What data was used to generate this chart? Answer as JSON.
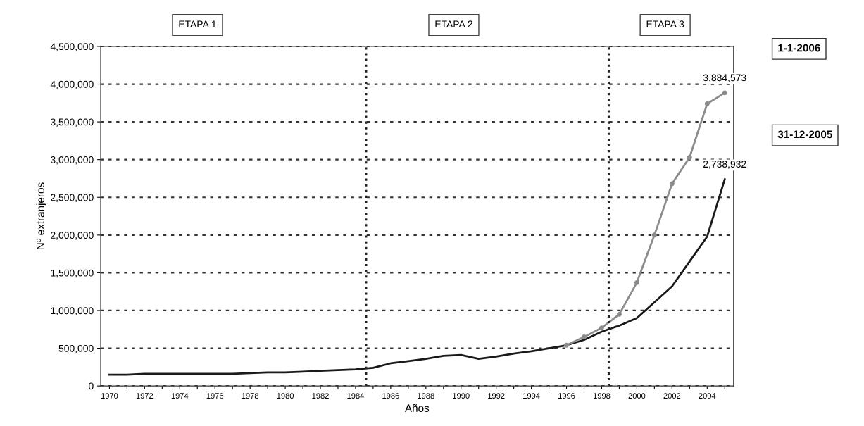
{
  "chart_data": {
    "type": "line",
    "xlabel": "Años",
    "ylabel": "Nº extranjeros",
    "x": [
      1970,
      1971,
      1972,
      1973,
      1974,
      1975,
      1976,
      1977,
      1978,
      1979,
      1980,
      1981,
      1982,
      1983,
      1984,
      1985,
      1986,
      1987,
      1988,
      1989,
      1990,
      1991,
      1992,
      1993,
      1994,
      1995,
      1996,
      1997,
      1998,
      1999,
      2000,
      2001,
      2002,
      2003,
      2004,
      2005
    ],
    "series": [
      {
        "name": "31-12-2005",
        "color": "#1a1a1a",
        "marker": "none",
        "values": [
          150000,
          150000,
          160000,
          160000,
          160000,
          160000,
          160000,
          160000,
          170000,
          180000,
          180000,
          190000,
          200000,
          210000,
          220000,
          240000,
          300000,
          330000,
          360000,
          400000,
          410000,
          360000,
          390000,
          430000,
          460000,
          500000,
          540000,
          610000,
          720000,
          800000,
          900000,
          1110000,
          1320000,
          1650000,
          1980000,
          2738932
        ],
        "value_labels": [
          null,
          null,
          null,
          null,
          null,
          null,
          null,
          null,
          null,
          null,
          null,
          null,
          null,
          null,
          null,
          null,
          null,
          null,
          null,
          null,
          null,
          null,
          null,
          null,
          null,
          null,
          null,
          null,
          null,
          null,
          null,
          null,
          null,
          null,
          null,
          "2,738,932"
        ]
      },
      {
        "name": "1-1-2006",
        "color": "#8c8c8c",
        "marker": "circle",
        "values": [
          null,
          null,
          null,
          null,
          null,
          null,
          null,
          null,
          null,
          null,
          null,
          null,
          null,
          null,
          null,
          null,
          null,
          null,
          null,
          null,
          null,
          null,
          null,
          null,
          null,
          null,
          540000,
          650000,
          770000,
          950000,
          1370000,
          2000000,
          2680000,
          3030000,
          3740000,
          3884573
        ],
        "value_labels": [
          null,
          null,
          null,
          null,
          null,
          null,
          null,
          null,
          null,
          null,
          null,
          null,
          null,
          null,
          null,
          null,
          null,
          null,
          null,
          null,
          null,
          null,
          null,
          null,
          null,
          null,
          null,
          null,
          null,
          null,
          null,
          null,
          null,
          null,
          null,
          "3,884,573"
        ]
      }
    ],
    "xlim": [
      1969.5,
      2005.5
    ],
    "xticks": [
      1970,
      {
        "value": 1971,
        "label": null
      },
      1972,
      {
        "value": 1973,
        "label": null
      },
      1974,
      {
        "value": 1975,
        "label": null
      },
      1976,
      {
        "value": 1977,
        "label": null
      },
      1978,
      {
        "value": 1979,
        "label": null
      },
      1980,
      {
        "value": 1981,
        "label": null
      },
      1982,
      {
        "value": 1983,
        "label": null
      },
      1984,
      {
        "value": 1985,
        "label": null
      },
      1986,
      {
        "value": 1987,
        "label": null
      },
      1988,
      {
        "value": 1989,
        "label": null
      },
      1990,
      {
        "value": 1991,
        "label": null
      },
      1992,
      {
        "value": 1993,
        "label": null
      },
      1994,
      {
        "value": 1995,
        "label": null
      },
      1996,
      {
        "value": 1997,
        "label": null
      },
      1998,
      {
        "value": 1999,
        "label": null
      },
      2000,
      {
        "value": 2001,
        "label": null
      },
      2002,
      {
        "value": 2003,
        "label": null
      },
      2004,
      {
        "value": 2005,
        "label": null
      }
    ],
    "ylim": [
      0,
      4500000
    ],
    "yticks": [
      0,
      {
        "value": 500000,
        "label": "500,000"
      },
      {
        "value": 1000000,
        "label": "1,000,000"
      },
      {
        "value": 1500000,
        "label": "1,500,000"
      },
      {
        "value": 2000000,
        "label": "2,000,000"
      },
      {
        "value": 2500000,
        "label": "2,500,000"
      },
      {
        "value": 3000000,
        "label": "3,000,000"
      },
      {
        "value": 3500000,
        "label": "3,500,000"
      },
      {
        "value": 4000000,
        "label": "4,000,000"
      },
      {
        "value": 4500000,
        "label": "4,500,000"
      }
    ],
    "grid": "y",
    "line_style": "solid",
    "ref_lines": [
      {
        "axis": "x",
        "value": 1984.6,
        "line_style": "dotted",
        "color": "#222222"
      },
      {
        "axis": "x",
        "value": 1998.4,
        "line_style": "dotted",
        "color": "#222222"
      }
    ],
    "annotations": [
      "ETAPA 1",
      "ETAPA 2",
      "ETAPA 3"
    ]
  }
}
